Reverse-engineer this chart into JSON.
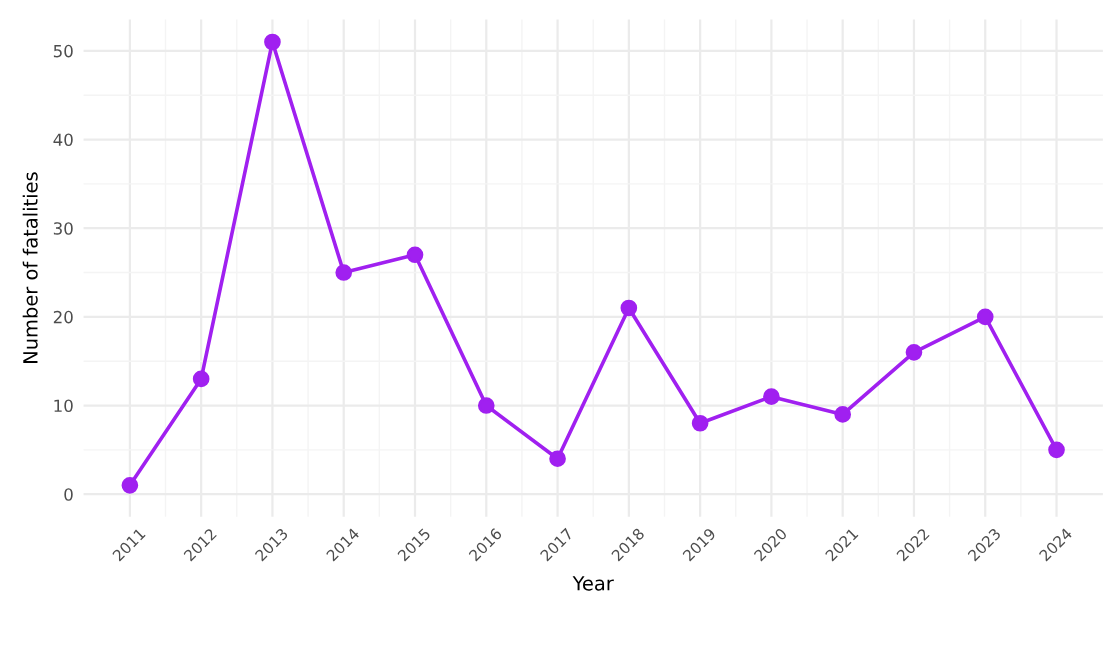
{
  "chart_data": {
    "type": "line",
    "xlabel": "Year",
    "ylabel": "Number of fatalities",
    "x": [
      2011,
      2012,
      2013,
      2014,
      2015,
      2016,
      2017,
      2018,
      2019,
      2020,
      2021,
      2022,
      2023,
      2024
    ],
    "series": [
      {
        "color": "#a020f0",
        "values": [
          1,
          13,
          51,
          25,
          27,
          10,
          4,
          21,
          8,
          11,
          9,
          16,
          20,
          5
        ]
      }
    ],
    "xlim": [
      2010.35,
      2024.65
    ],
    "xticks": [
      2011,
      2012,
      2013,
      2014,
      2015,
      2016,
      2017,
      2018,
      2019,
      2020,
      2021,
      2022,
      2023,
      2024
    ],
    "ylim": [
      -2.55,
      53.55
    ],
    "yticks": [
      0,
      10,
      20,
      30,
      40,
      50
    ],
    "grid": true,
    "marker": "circle",
    "line_style": "solid"
  }
}
